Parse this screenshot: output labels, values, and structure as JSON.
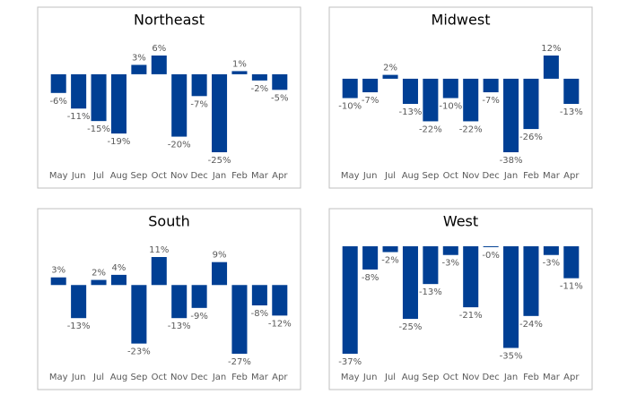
{
  "chart_data": [
    {
      "type": "bar",
      "title": "Northeast",
      "color": "#003f94",
      "categories": [
        "May",
        "Jun",
        "Jul",
        "Aug",
        "Sep",
        "Oct",
        "Nov",
        "Dec",
        "Jan",
        "Feb",
        "Mar",
        "Apr"
      ],
      "values": [
        -6,
        -11,
        -15,
        -19,
        3,
        6,
        -20,
        -7,
        -25,
        1,
        -2,
        -5
      ],
      "value_labels": [
        "-6%",
        "-11%",
        "-15%",
        "-19%",
        "3%",
        "6%",
        "-20%",
        "-7%",
        "-25%",
        "1%",
        "-2%",
        "-5%"
      ]
    },
    {
      "type": "bar",
      "title": "Midwest",
      "color": "#003f94",
      "categories": [
        "May",
        "Jun",
        "Jul",
        "Aug",
        "Sep",
        "Oct",
        "Nov",
        "Dec",
        "Jan",
        "Feb",
        "Mar",
        "Apr"
      ],
      "values": [
        -10,
        -7,
        2,
        -13,
        -22,
        -10,
        -22,
        -7,
        -38,
        -26,
        12,
        -13
      ],
      "value_labels": [
        "-10%",
        "-7%",
        "2%",
        "-13%",
        "-22%",
        "-10%",
        "-22%",
        "-7%",
        "-38%",
        "-26%",
        "12%",
        "-13%"
      ]
    },
    {
      "type": "bar",
      "title": "South",
      "color": "#003f94",
      "categories": [
        "May",
        "Jun",
        "Jul",
        "Aug",
        "Sep",
        "Oct",
        "Nov",
        "Dec",
        "Jan",
        "Feb",
        "Mar",
        "Apr"
      ],
      "values": [
        3,
        -13,
        2,
        4,
        -23,
        11,
        -13,
        -9,
        9,
        -27,
        -8,
        -12
      ],
      "value_labels": [
        "3%",
        "-13%",
        "2%",
        "4%",
        "-23%",
        "11%",
        "-13%",
        "-9%",
        "9%",
        "-27%",
        "-8%",
        "-12%"
      ]
    },
    {
      "type": "bar",
      "title": "West",
      "color": "#003f94",
      "categories": [
        "May",
        "Jun",
        "Jul",
        "Aug",
        "Sep",
        "Oct",
        "Nov",
        "Dec",
        "Jan",
        "Feb",
        "Mar",
        "Apr"
      ],
      "values": [
        -37,
        -8,
        -2,
        -25,
        -13,
        -3,
        -21,
        -0.3,
        -35,
        -24,
        -3,
        -11
      ],
      "value_labels": [
        "-37%",
        "-8%",
        "-2%",
        "-25%",
        "-13%",
        "-3%",
        "-21%",
        "-0%",
        "-35%",
        "-24%",
        "-3%",
        "-11%"
      ]
    }
  ]
}
